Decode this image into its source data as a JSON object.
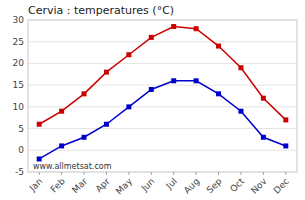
{
  "chart_data": {
    "type": "line",
    "title": "Cervia : temperatures (°C)",
    "categories": [
      "Jan",
      "Feb",
      "Mar",
      "Apr",
      "May",
      "Jun",
      "Jul",
      "Aug",
      "Sep",
      "Oct",
      "Nov",
      "Dec"
    ],
    "series": [
      {
        "color": "#cc0000",
        "marker": "square",
        "values": [
          6,
          9,
          13,
          18,
          22,
          26,
          28.5,
          28,
          24,
          19,
          12,
          7
        ]
      },
      {
        "color": "#0000cc",
        "marker": "square",
        "values": [
          -2,
          1,
          3,
          6,
          10,
          14,
          16,
          16,
          13,
          9,
          3,
          1
        ]
      }
    ],
    "ylim": [
      -5,
      30
    ],
    "yticks": [
      -5,
      0,
      5,
      10,
      15,
      20,
      25,
      30
    ],
    "grid": true,
    "annotations": [
      "www.allmetsat.com"
    ]
  }
}
